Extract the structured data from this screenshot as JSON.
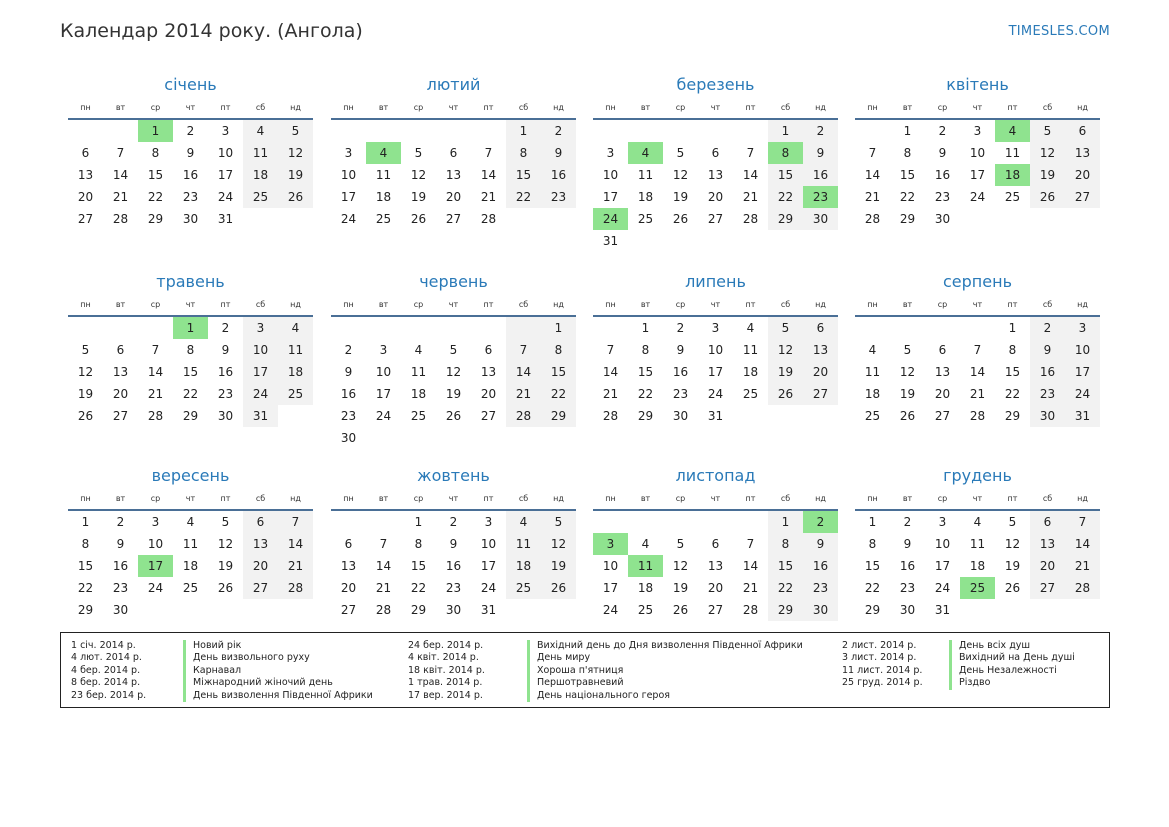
{
  "header": {
    "title": "Календар 2014 року. (Ангола)",
    "site": "TIMESLES.COM"
  },
  "weekdays": [
    "пн",
    "вт",
    "ср",
    "чт",
    "пт",
    "сб",
    "нд"
  ],
  "months": [
    {
      "name": "січень",
      "offset": 2,
      "days": 31,
      "holidays": [
        1
      ]
    },
    {
      "name": "лютий",
      "offset": 5,
      "days": 28,
      "holidays": [
        4
      ]
    },
    {
      "name": "березень",
      "offset": 5,
      "days": 31,
      "holidays": [
        4,
        8,
        23,
        24
      ]
    },
    {
      "name": "квітень",
      "offset": 1,
      "days": 30,
      "holidays": [
        4,
        18
      ]
    },
    {
      "name": "травень",
      "offset": 3,
      "days": 31,
      "holidays": [
        1
      ]
    },
    {
      "name": "червень",
      "offset": 6,
      "days": 30,
      "holidays": []
    },
    {
      "name": "липень",
      "offset": 1,
      "days": 31,
      "holidays": []
    },
    {
      "name": "серпень",
      "offset": 4,
      "days": 31,
      "holidays": []
    },
    {
      "name": "вересень",
      "offset": 0,
      "days": 30,
      "holidays": [
        17
      ]
    },
    {
      "name": "жовтень",
      "offset": 2,
      "days": 31,
      "holidays": []
    },
    {
      "name": "листопад",
      "offset": 5,
      "days": 30,
      "holidays": [
        2,
        3,
        11
      ]
    },
    {
      "name": "грудень",
      "offset": 0,
      "days": 31,
      "holidays": [
        25
      ]
    }
  ],
  "legend": [
    [
      {
        "date": "1 січ. 2014 р.",
        "name": "Новий рік"
      },
      {
        "date": "4 лют. 2014 р.",
        "name": "День визвольного руху"
      },
      {
        "date": "4 бер. 2014 р.",
        "name": "Карнавал"
      },
      {
        "date": "8 бер. 2014 р.",
        "name": "Міжнародний жіночий день"
      },
      {
        "date": "23 бер. 2014 р.",
        "name": "День визволення Південної Африки"
      }
    ],
    [
      {
        "date": "24 бер. 2014 р.",
        "name": "Вихідний день до Дня визволення Південної Африки"
      },
      {
        "date": "4 квіт. 2014 р.",
        "name": "День миру"
      },
      {
        "date": "18 квіт. 2014 р.",
        "name": "Хороша п'ятниця"
      },
      {
        "date": "1 трав. 2014 р.",
        "name": "Першотравневий"
      },
      {
        "date": "17 вер. 2014 р.",
        "name": "День національного героя"
      }
    ],
    [
      {
        "date": "2 лист. 2014 р.",
        "name": "День всіх душ"
      },
      {
        "date": "3 лист. 2014 р.",
        "name": "Вихідний на День душі"
      },
      {
        "date": "11 лист. 2014 р.",
        "name": "День Незалежності"
      },
      {
        "date": "25 груд. 2014 р.",
        "name": "Різдво"
      }
    ]
  ]
}
